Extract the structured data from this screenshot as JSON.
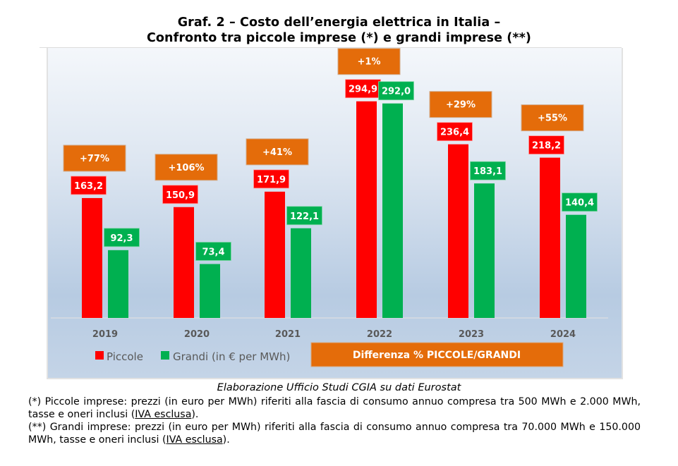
{
  "title_line1": "Graf. 2 – Costo dell’energia elettrica in Italia –",
  "title_line2": "Confronto tra piccole imprese (*) e grandi imprese (**)",
  "source": "Elaborazione Ufficio Studi CGIA su dati Eurostat",
  "notes": [
    {
      "prefix": "(*) Piccole imprese: prezzi (in euro per MWh) riferiti alla fascia di consumo annuo compresa tra 500 MWh e 2.000 MWh, tasse e oneri inclusi (",
      "underlined": "IVA esclusa",
      "suffix": ")."
    },
    {
      "prefix": "(**) Grandi imprese: prezzi (in euro per MWh) riferiti alla fascia di consumo annuo compresa tra 70.000 MWh e 150.000 MWh, tasse e oneri inclusi (",
      "underlined": "IVA esclusa",
      "suffix": ")."
    }
  ],
  "colors": {
    "piccole": "#ff0000",
    "grandi": "#00b050",
    "difference": "#e46c0a",
    "year_label": "#595959"
  },
  "chart_data": {
    "type": "bar",
    "title": "Costo dell’energia elettrica in Italia – Confronto tra piccole imprese e grandi imprese",
    "categories": [
      "2019",
      "2020",
      "2021",
      "2022",
      "2023",
      "2024"
    ],
    "series": [
      {
        "name": "Piccole",
        "values": [
          163.2,
          150.9,
          171.9,
          294.9,
          236.4,
          218.2
        ],
        "labels": [
          "163,2",
          "150,9",
          "171,9",
          "294,9",
          "236,4",
          "218,2"
        ]
      },
      {
        "name": "Grandi (in € per MWh)",
        "values": [
          92.3,
          73.4,
          122.1,
          292.0,
          183.1,
          140.4
        ],
        "labels": [
          "92,3",
          "73,4",
          "122,1",
          "292,0",
          "183,1",
          "140,4"
        ]
      }
    ],
    "difference": {
      "name": "Differenza % PICCOLE/GRANDI",
      "labels": [
        "+77%",
        "+106%",
        "+41%",
        "+1%",
        "+29%",
        "+55%"
      ],
      "values": [
        77,
        106,
        41,
        1,
        29,
        55
      ]
    },
    "xlabel": "",
    "ylabel": "€ per MWh",
    "ylim": [
      0,
      300
    ],
    "grid": false,
    "legend": "bottom"
  }
}
